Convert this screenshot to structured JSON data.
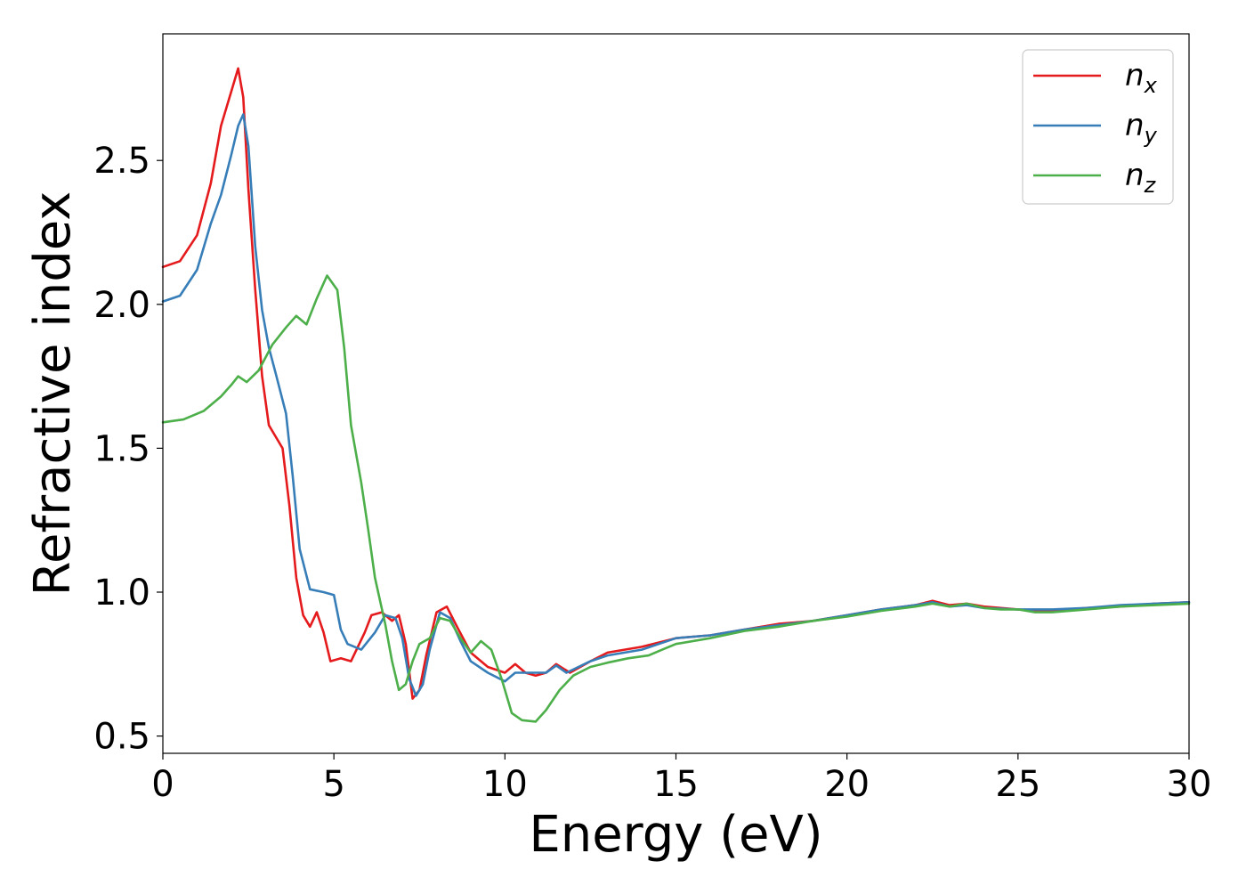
{
  "chart_data": {
    "type": "line",
    "title": "",
    "xlabel": "Energy (eV)",
    "ylabel": "Refractive index",
    "xlim": [
      0,
      30
    ],
    "ylim": [
      0.44,
      2.94
    ],
    "xticks": [
      0,
      5,
      10,
      15,
      20,
      25,
      30
    ],
    "xtick_labels": [
      "0",
      "5",
      "10",
      "15",
      "20",
      "25",
      "30"
    ],
    "yticks": [
      0.5,
      1.0,
      1.5,
      2.0,
      2.5
    ],
    "ytick_labels": [
      "0.5",
      "1.0",
      "1.5",
      "2.0",
      "2.5"
    ],
    "grid": false,
    "legend_position": "top-right",
    "series": [
      {
        "name": "n_x",
        "name_base": "n",
        "name_sub": "x",
        "color": "#e41a1c",
        "points": [
          [
            0,
            2.13
          ],
          [
            0.5,
            2.15
          ],
          [
            1.0,
            2.24
          ],
          [
            1.4,
            2.42
          ],
          [
            1.7,
            2.62
          ],
          [
            2.0,
            2.74
          ],
          [
            2.2,
            2.82
          ],
          [
            2.35,
            2.72
          ],
          [
            2.5,
            2.4
          ],
          [
            2.7,
            2.05
          ],
          [
            2.9,
            1.75
          ],
          [
            3.1,
            1.58
          ],
          [
            3.3,
            1.54
          ],
          [
            3.5,
            1.5
          ],
          [
            3.7,
            1.3
          ],
          [
            3.9,
            1.05
          ],
          [
            4.1,
            0.92
          ],
          [
            4.3,
            0.88
          ],
          [
            4.5,
            0.93
          ],
          [
            4.7,
            0.86
          ],
          [
            4.9,
            0.76
          ],
          [
            5.2,
            0.77
          ],
          [
            5.5,
            0.76
          ],
          [
            5.9,
            0.86
          ],
          [
            6.1,
            0.92
          ],
          [
            6.4,
            0.93
          ],
          [
            6.7,
            0.9
          ],
          [
            6.9,
            0.92
          ],
          [
            7.1,
            0.82
          ],
          [
            7.3,
            0.63
          ],
          [
            7.5,
            0.66
          ],
          [
            7.7,
            0.78
          ],
          [
            8.0,
            0.93
          ],
          [
            8.3,
            0.95
          ],
          [
            8.6,
            0.88
          ],
          [
            9.0,
            0.79
          ],
          [
            9.5,
            0.74
          ],
          [
            10.0,
            0.72
          ],
          [
            10.3,
            0.75
          ],
          [
            10.6,
            0.72
          ],
          [
            10.9,
            0.71
          ],
          [
            11.2,
            0.72
          ],
          [
            11.5,
            0.75
          ],
          [
            11.9,
            0.72
          ],
          [
            12.5,
            0.76
          ],
          [
            13.0,
            0.79
          ],
          [
            14.0,
            0.81
          ],
          [
            15.0,
            0.84
          ],
          [
            16.0,
            0.85
          ],
          [
            17.0,
            0.87
          ],
          [
            18.0,
            0.89
          ],
          [
            19.0,
            0.9
          ],
          [
            20.0,
            0.92
          ],
          [
            21.0,
            0.94
          ],
          [
            22.0,
            0.955
          ],
          [
            22.5,
            0.97
          ],
          [
            23.0,
            0.955
          ],
          [
            23.5,
            0.96
          ],
          [
            24.0,
            0.95
          ],
          [
            24.5,
            0.945
          ],
          [
            25.0,
            0.94
          ],
          [
            25.5,
            0.935
          ],
          [
            26.0,
            0.935
          ],
          [
            27.0,
            0.945
          ],
          [
            28.0,
            0.95
          ],
          [
            29.0,
            0.96
          ],
          [
            30.0,
            0.965
          ]
        ]
      },
      {
        "name": "n_y",
        "name_base": "n",
        "name_sub": "y",
        "color": "#377eb8",
        "points": [
          [
            0,
            2.01
          ],
          [
            0.5,
            2.03
          ],
          [
            1.0,
            2.12
          ],
          [
            1.4,
            2.28
          ],
          [
            1.7,
            2.38
          ],
          [
            2.0,
            2.52
          ],
          [
            2.2,
            2.62
          ],
          [
            2.35,
            2.66
          ],
          [
            2.5,
            2.55
          ],
          [
            2.7,
            2.2
          ],
          [
            2.9,
            1.98
          ],
          [
            3.1,
            1.85
          ],
          [
            3.3,
            1.76
          ],
          [
            3.6,
            1.62
          ],
          [
            3.8,
            1.4
          ],
          [
            4.0,
            1.15
          ],
          [
            4.3,
            1.01
          ],
          [
            4.7,
            1.0
          ],
          [
            5.0,
            0.99
          ],
          [
            5.2,
            0.87
          ],
          [
            5.4,
            0.82
          ],
          [
            5.8,
            0.8
          ],
          [
            6.2,
            0.86
          ],
          [
            6.5,
            0.92
          ],
          [
            6.8,
            0.91
          ],
          [
            7.0,
            0.84
          ],
          [
            7.2,
            0.7
          ],
          [
            7.4,
            0.64
          ],
          [
            7.6,
            0.68
          ],
          [
            7.8,
            0.8
          ],
          [
            8.1,
            0.93
          ],
          [
            8.4,
            0.91
          ],
          [
            8.7,
            0.83
          ],
          [
            9.0,
            0.76
          ],
          [
            9.5,
            0.72
          ],
          [
            10.0,
            0.69
          ],
          [
            10.3,
            0.72
          ],
          [
            10.6,
            0.72
          ],
          [
            10.9,
            0.72
          ],
          [
            11.2,
            0.72
          ],
          [
            11.5,
            0.745
          ],
          [
            11.8,
            0.72
          ],
          [
            12.5,
            0.76
          ],
          [
            13.0,
            0.78
          ],
          [
            14.0,
            0.8
          ],
          [
            15.0,
            0.84
          ],
          [
            16.0,
            0.85
          ],
          [
            17.0,
            0.87
          ],
          [
            18.0,
            0.885
          ],
          [
            19.0,
            0.9
          ],
          [
            20.0,
            0.92
          ],
          [
            21.0,
            0.94
          ],
          [
            22.0,
            0.955
          ],
          [
            22.5,
            0.965
          ],
          [
            23.0,
            0.95
          ],
          [
            23.5,
            0.955
          ],
          [
            24.0,
            0.945
          ],
          [
            25.0,
            0.94
          ],
          [
            26.0,
            0.94
          ],
          [
            27.0,
            0.945
          ],
          [
            28.0,
            0.955
          ],
          [
            29.0,
            0.96
          ],
          [
            30.0,
            0.965
          ]
        ]
      },
      {
        "name": "n_z",
        "name_base": "n",
        "name_sub": "z",
        "color": "#4daf4a",
        "points": [
          [
            0,
            1.59
          ],
          [
            0.6,
            1.6
          ],
          [
            1.2,
            1.63
          ],
          [
            1.7,
            1.68
          ],
          [
            2.0,
            1.72
          ],
          [
            2.2,
            1.75
          ],
          [
            2.45,
            1.73
          ],
          [
            2.8,
            1.77
          ],
          [
            3.2,
            1.86
          ],
          [
            3.6,
            1.92
          ],
          [
            3.9,
            1.96
          ],
          [
            4.2,
            1.93
          ],
          [
            4.5,
            2.02
          ],
          [
            4.8,
            2.1
          ],
          [
            5.1,
            2.05
          ],
          [
            5.3,
            1.85
          ],
          [
            5.5,
            1.58
          ],
          [
            5.8,
            1.38
          ],
          [
            6.0,
            1.22
          ],
          [
            6.2,
            1.05
          ],
          [
            6.5,
            0.89
          ],
          [
            6.7,
            0.76
          ],
          [
            6.9,
            0.66
          ],
          [
            7.1,
            0.68
          ],
          [
            7.3,
            0.76
          ],
          [
            7.5,
            0.82
          ],
          [
            7.8,
            0.84
          ],
          [
            8.1,
            0.91
          ],
          [
            8.4,
            0.9
          ],
          [
            8.7,
            0.84
          ],
          [
            9.0,
            0.79
          ],
          [
            9.3,
            0.83
          ],
          [
            9.6,
            0.8
          ],
          [
            9.9,
            0.7
          ],
          [
            10.2,
            0.58
          ],
          [
            10.5,
            0.555
          ],
          [
            10.9,
            0.55
          ],
          [
            11.2,
            0.59
          ],
          [
            11.6,
            0.66
          ],
          [
            12.0,
            0.71
          ],
          [
            12.5,
            0.74
          ],
          [
            13.0,
            0.755
          ],
          [
            13.6,
            0.77
          ],
          [
            14.2,
            0.78
          ],
          [
            14.6,
            0.8
          ],
          [
            15.0,
            0.82
          ],
          [
            16.0,
            0.84
          ],
          [
            17.0,
            0.865
          ],
          [
            18.0,
            0.88
          ],
          [
            19.0,
            0.9
          ],
          [
            20.0,
            0.915
          ],
          [
            21.0,
            0.935
          ],
          [
            22.0,
            0.95
          ],
          [
            22.5,
            0.96
          ],
          [
            23.0,
            0.95
          ],
          [
            23.5,
            0.96
          ],
          [
            24.0,
            0.945
          ],
          [
            24.5,
            0.94
          ],
          [
            25.0,
            0.94
          ],
          [
            25.5,
            0.93
          ],
          [
            26.0,
            0.93
          ],
          [
            27.0,
            0.94
          ],
          [
            28.0,
            0.95
          ],
          [
            29.0,
            0.955
          ],
          [
            30.0,
            0.96
          ]
        ]
      }
    ]
  }
}
